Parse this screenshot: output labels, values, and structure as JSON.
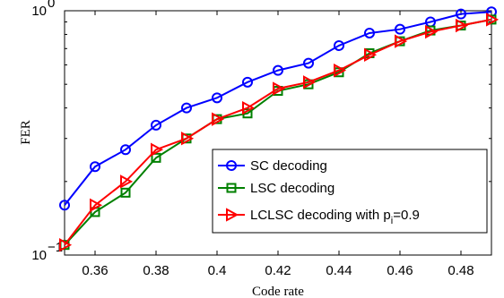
{
  "chart_data": {
    "type": "line",
    "title": "",
    "xlabel": "Code rate",
    "ylabel": "FER",
    "xlim": [
      0.35,
      0.49
    ],
    "ylim": [
      0.1,
      1
    ],
    "yscale": "log",
    "grid": false,
    "legend_position": "bottom-right",
    "x_tick_labels": [
      "0.36",
      "0.38",
      "0.4",
      "0.42",
      "0.44",
      "0.46",
      "0.48"
    ],
    "x_ticks": [
      0.36,
      0.38,
      0.4,
      0.42,
      0.44,
      0.46,
      0.48
    ],
    "y_tick_labels": [
      {
        "value": 0.1,
        "base": "10",
        "exp": "−1"
      },
      {
        "value": 1,
        "base": "10",
        "exp": "0"
      }
    ],
    "x": [
      0.35,
      0.36,
      0.37,
      0.38,
      0.39,
      0.4,
      0.41,
      0.42,
      0.43,
      0.44,
      0.45,
      0.46,
      0.47,
      0.48,
      0.49
    ],
    "series": [
      {
        "name": "SC decoding",
        "color": "#0000ff",
        "marker": "circle",
        "values": [
          0.16,
          0.23,
          0.27,
          0.34,
          0.4,
          0.44,
          0.51,
          0.57,
          0.61,
          0.72,
          0.81,
          0.84,
          0.9,
          0.97,
          0.99
        ]
      },
      {
        "name": "LSC decoding",
        "color": "#008000",
        "marker": "square",
        "values": [
          0.11,
          0.15,
          0.18,
          0.25,
          0.3,
          0.36,
          0.38,
          0.47,
          0.5,
          0.56,
          0.67,
          0.75,
          0.83,
          0.87,
          0.92
        ]
      },
      {
        "name": "LCLSC decoding with p_i=0.9",
        "label_main": "LCLSC decoding with p",
        "label_sub": "i",
        "label_tail": "=0.9",
        "color": "#ff0000",
        "marker": "triangle-right",
        "values": [
          0.11,
          0.16,
          0.2,
          0.27,
          0.3,
          0.36,
          0.4,
          0.48,
          0.51,
          0.57,
          0.66,
          0.75,
          0.82,
          0.87,
          0.92
        ]
      }
    ]
  }
}
